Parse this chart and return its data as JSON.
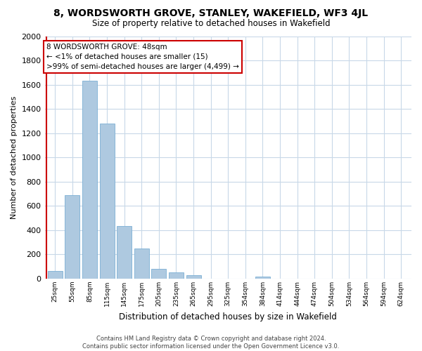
{
  "title": "8, WORDSWORTH GROVE, STANLEY, WAKEFIELD, WF3 4JL",
  "subtitle": "Size of property relative to detached houses in Wakefield",
  "xlabel": "Distribution of detached houses by size in Wakefield",
  "ylabel": "Number of detached properties",
  "categories": [
    "25sqm",
    "55sqm",
    "85sqm",
    "115sqm",
    "145sqm",
    "175sqm",
    "205sqm",
    "235sqm",
    "265sqm",
    "295sqm",
    "325sqm",
    "354sqm",
    "384sqm",
    "414sqm",
    "444sqm",
    "474sqm",
    "504sqm",
    "534sqm",
    "564sqm",
    "594sqm",
    "624sqm"
  ],
  "values": [
    65,
    690,
    1630,
    1280,
    435,
    250,
    82,
    50,
    28,
    0,
    0,
    0,
    15,
    0,
    0,
    0,
    0,
    0,
    0,
    0,
    0
  ],
  "bar_color": "#aec9e0",
  "bar_edge_color": "#7bafd4",
  "marker_line_color": "#cc0000",
  "ylim": [
    0,
    2000
  ],
  "yticks": [
    0,
    200,
    400,
    600,
    800,
    1000,
    1200,
    1400,
    1600,
    1800,
    2000
  ],
  "annotation_title": "8 WORDSWORTH GROVE: 48sqm",
  "annotation_line1": "← <1% of detached houses are smaller (15)",
  "annotation_line2": ">99% of semi-detached houses are larger (4,499) →",
  "annotation_box_color": "#ffffff",
  "annotation_border_color": "#cc0000",
  "footer_line1": "Contains HM Land Registry data © Crown copyright and database right 2024.",
  "footer_line2": "Contains public sector information licensed under the Open Government Licence v3.0.",
  "background_color": "#ffffff",
  "grid_color": "#c8d8e8"
}
